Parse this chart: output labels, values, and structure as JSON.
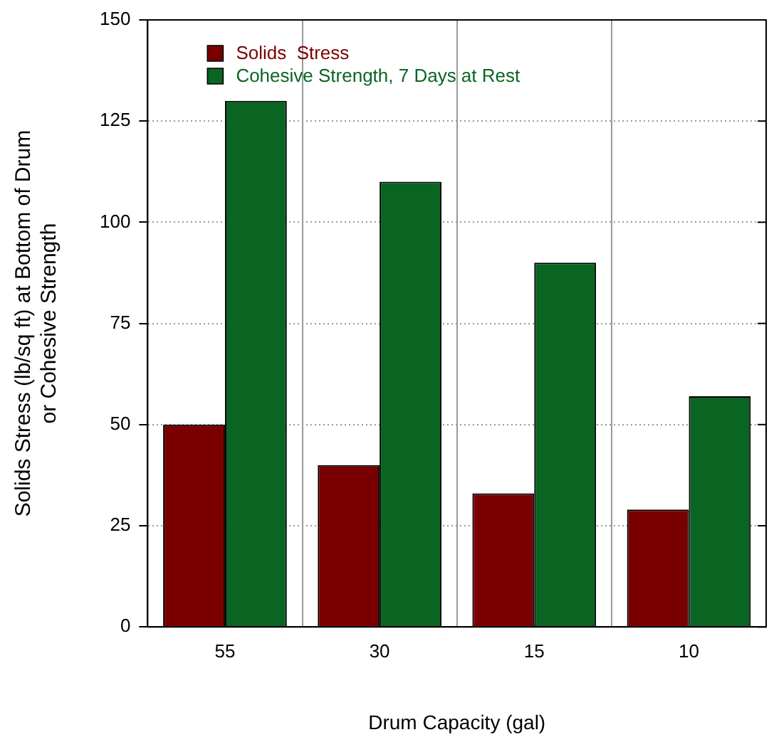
{
  "chart_data": {
    "type": "bar",
    "xlabel": "Drum Capacity (gal)",
    "ylabel": "Solids Stress (lb/sq ft) at Bottom of Drum\nor Cohesive Strength",
    "categories": [
      "55",
      "30",
      "15",
      "10"
    ],
    "series": [
      {
        "name": "Solids  Stress",
        "color": "#7a0000",
        "values": [
          50,
          40,
          33,
          29
        ]
      },
      {
        "name": "Cohesive Strength, 7 Days at Rest",
        "color": "#0a6422",
        "values": [
          130,
          110,
          90,
          57
        ]
      }
    ],
    "ylim": [
      0,
      150
    ],
    "yticks": [
      0,
      25,
      50,
      75,
      100,
      125,
      150
    ],
    "grid": true,
    "legend": "top left"
  }
}
